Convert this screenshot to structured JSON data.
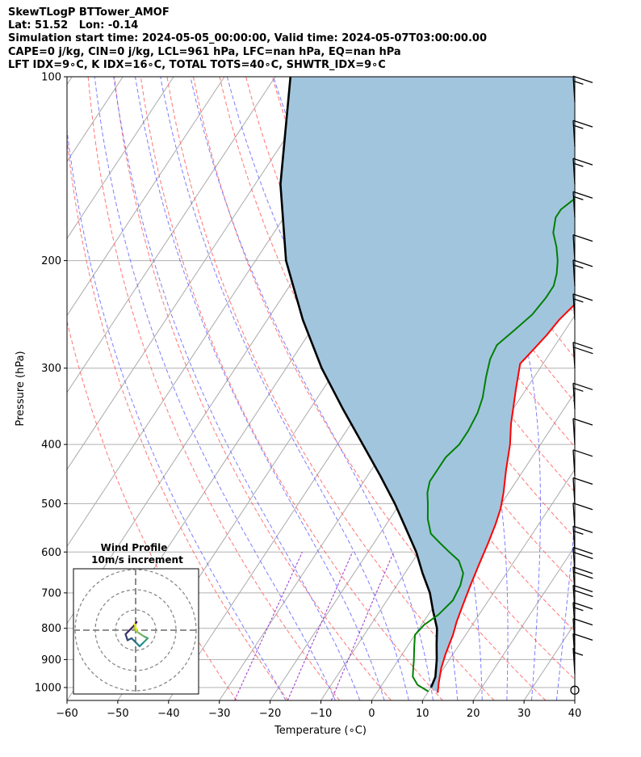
{
  "header": {
    "line1": "SkewTLogP BTTower_AMOF",
    "line2": "Lat: 51.52   Lon: -0.14",
    "line3": "Simulation start time: 2024-05-05_00:00:00, Valid time: 2024-05-07T03:00:00.00",
    "line4": "CAPE=0 j/kg, CIN=0 j/kg, LCL=961 hPa, LFC=nan hPa, EQ=nan hPa",
    "line5": "LFT IDX=9∘C, K IDX=16∘C, TOTAL TOTS=40∘C, SHWTR_IDX=9∘C"
  },
  "chart_data": {
    "type": "skewt",
    "xlabel": "Temperature (∘C)",
    "ylabel": "Pressure (hPa)",
    "xlim": [
      -60,
      40
    ],
    "ylim": [
      1050,
      100
    ],
    "x_ticks": [
      "−60",
      "−50",
      "−40",
      "−30",
      "−20",
      "−10",
      "0",
      "10",
      "20",
      "30",
      "40"
    ],
    "x_tick_values": [
      -60,
      -50,
      -40,
      -30,
      -20,
      -10,
      0,
      10,
      20,
      30,
      40
    ],
    "y_ticks": [
      "1000",
      "900",
      "800",
      "700",
      "600",
      "500",
      "400",
      "300",
      "200",
      "100"
    ],
    "y_tick_values": [
      1000,
      900,
      800,
      700,
      600,
      500,
      400,
      300,
      200,
      100
    ],
    "pressure_scale": "log",
    "grid": true,
    "colors": {
      "temperature": "#ff0000",
      "dewpoint": "#008000",
      "parcel": "#000000",
      "cape_fill": "#a2c5de",
      "dry_adiabat": "#ff6666",
      "moist_adiabat": "#6666ff",
      "mixing_ratio": "#9933cc",
      "isotherm": "#aaaaaa"
    },
    "series": [
      {
        "name": "temperature",
        "points": [
          [
            12,
            1020
          ],
          [
            11,
            985
          ],
          [
            9.5,
            930
          ],
          [
            8.5,
            880
          ],
          [
            7.5,
            820
          ],
          [
            6.5,
            780
          ],
          [
            5.5,
            730
          ],
          [
            4.5,
            680
          ],
          [
            3.5,
            630
          ],
          [
            2.5,
            580
          ],
          [
            1.5,
            540
          ],
          [
            0.5,
            510
          ],
          [
            -1,
            480
          ],
          [
            -3.5,
            440
          ],
          [
            -6,
            400
          ],
          [
            -8.5,
            370
          ],
          [
            -10,
            350
          ],
          [
            -12,
            325
          ],
          [
            -14.5,
            295
          ],
          [
            -14,
            285
          ],
          [
            -13,
            265
          ],
          [
            -12.5,
            250
          ],
          [
            -11,
            230
          ],
          [
            -8.5,
            210
          ],
          [
            -7,
            200
          ],
          [
            -5,
            190
          ],
          [
            -3,
            180
          ],
          [
            -0.5,
            170
          ],
          [
            2,
            160
          ],
          [
            4.5,
            150
          ],
          [
            7,
            140
          ],
          [
            9.5,
            130
          ],
          [
            12,
            120
          ],
          [
            14.5,
            110
          ],
          [
            17,
            100
          ]
        ]
      },
      {
        "name": "dewpoint",
        "points": [
          [
            10,
            1015
          ],
          [
            7,
            990
          ],
          [
            5,
            960
          ],
          [
            4,
            930
          ],
          [
            3,
            900
          ],
          [
            1.5,
            860
          ],
          [
            0,
            820
          ],
          [
            0.5,
            790
          ],
          [
            2,
            760
          ],
          [
            3,
            720
          ],
          [
            2.5,
            680
          ],
          [
            1.5,
            650
          ],
          [
            -1,
            620
          ],
          [
            -4,
            600
          ],
          [
            -7,
            580
          ],
          [
            -10,
            560
          ],
          [
            -12.5,
            530
          ],
          [
            -14.5,
            500
          ],
          [
            -16,
            480
          ],
          [
            -17,
            460
          ],
          [
            -17,
            420
          ],
          [
            -16,
            400
          ],
          [
            -16,
            380
          ],
          [
            -16.5,
            355
          ],
          [
            -17.5,
            335
          ],
          [
            -19.5,
            310
          ],
          [
            -21,
            290
          ],
          [
            -21.5,
            275
          ],
          [
            -20,
            260
          ],
          [
            -18.5,
            245
          ],
          [
            -18,
            230
          ],
          [
            -18,
            220
          ],
          [
            -19,
            210
          ],
          [
            -20.5,
            200
          ],
          [
            -22.5,
            190
          ],
          [
            -25,
            180
          ],
          [
            -26.5,
            170
          ],
          [
            -26.5,
            165
          ],
          [
            -24.5,
            155
          ],
          [
            -22.5,
            145
          ],
          [
            -20.5,
            135
          ],
          [
            -18.5,
            125
          ],
          [
            -16,
            115
          ],
          [
            -14,
            105
          ],
          [
            -12.5,
            100
          ]
        ]
      },
      {
        "name": "parcel",
        "points": [
          [
            10,
            1000
          ],
          [
            9.5,
            961
          ],
          [
            7.5,
            900
          ],
          [
            5.5,
            850
          ],
          [
            3.5,
            800
          ],
          [
            0.5,
            750
          ],
          [
            -2.5,
            700
          ],
          [
            -6.5,
            650
          ],
          [
            -10.5,
            600
          ],
          [
            -15.5,
            550
          ],
          [
            -21,
            500
          ],
          [
            -27.5,
            450
          ],
          [
            -35,
            400
          ],
          [
            -43.5,
            350
          ],
          [
            -53,
            300
          ],
          [
            -63,
            250
          ],
          [
            -74,
            200
          ],
          [
            -85,
            150
          ],
          [
            -97,
            100
          ]
        ]
      }
    ],
    "wind_barbs": {
      "pressures": [
        1010,
        950,
        900,
        850,
        800,
        750,
        700,
        650,
        600,
        550,
        500,
        450,
        400,
        350,
        300,
        250,
        220,
        200,
        170,
        150,
        130,
        110
      ],
      "speeds_kt": [
        0,
        5,
        10,
        10,
        15,
        20,
        20,
        20,
        15,
        10,
        10,
        10,
        10,
        15,
        20,
        15,
        15,
        10,
        15,
        15,
        15,
        15
      ]
    },
    "hodograph": {
      "title": "Wind Profile",
      "subtitle": "10m/s increment",
      "rings_ms": [
        10,
        20,
        30
      ],
      "u": [
        0.5,
        -1,
        -3,
        -5,
        -4,
        -2,
        0,
        2,
        4,
        6,
        4,
        1,
        -1,
        0,
        -0.5,
        0.5
      ],
      "v": [
        4,
        2,
        0,
        -2,
        -5,
        -4,
        -6,
        -8,
        -6,
        -4,
        -3,
        -1,
        1,
        2,
        3,
        0
      ]
    }
  }
}
